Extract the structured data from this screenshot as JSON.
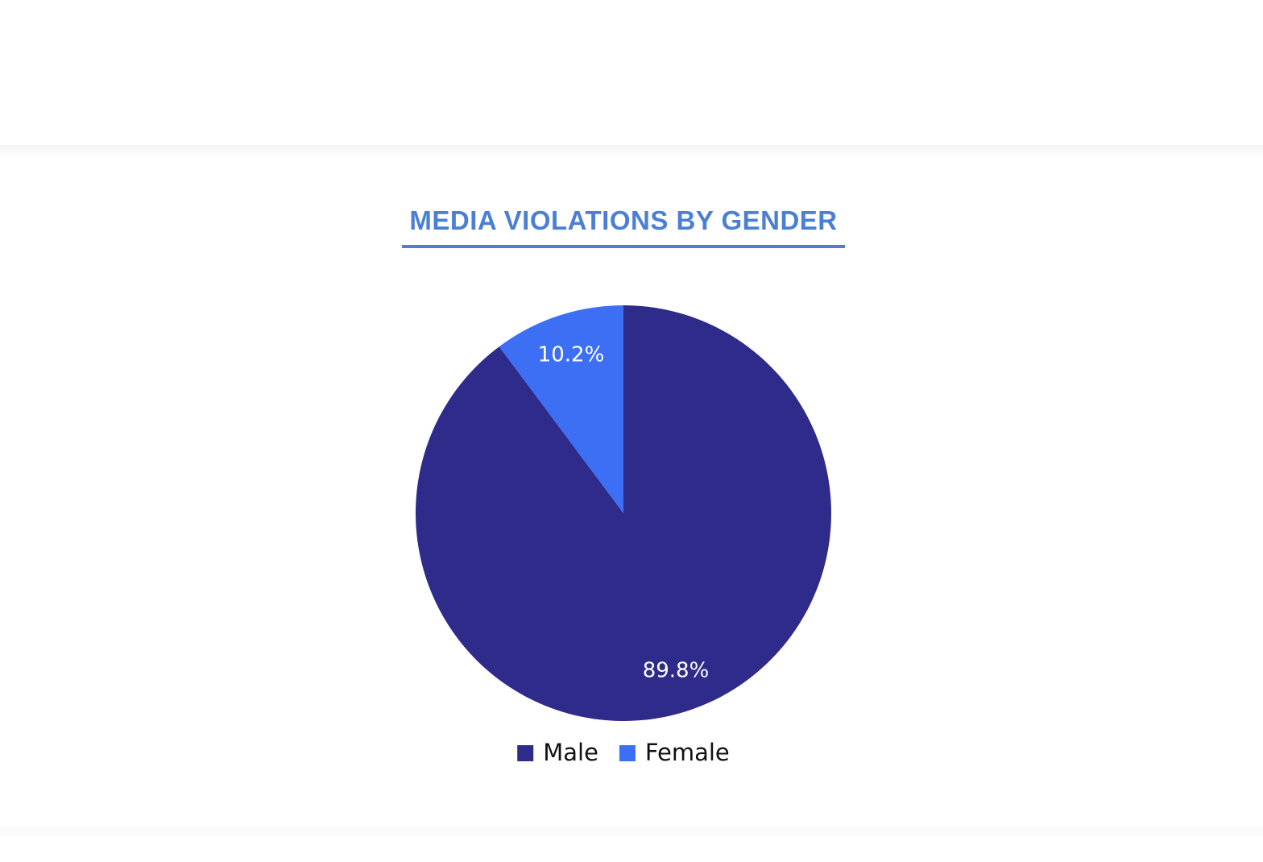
{
  "chart_data": {
    "type": "pie",
    "title": "MEDIA VIOLATIONS BY GENDER",
    "categories": [
      "Male",
      "Female"
    ],
    "values": [
      89.8,
      10.2
    ],
    "value_labels": [
      "89.8%",
      "10.2%"
    ],
    "colors": [
      "#2e2b8a",
      "#3d6ff5"
    ],
    "legend": "bottom"
  }
}
